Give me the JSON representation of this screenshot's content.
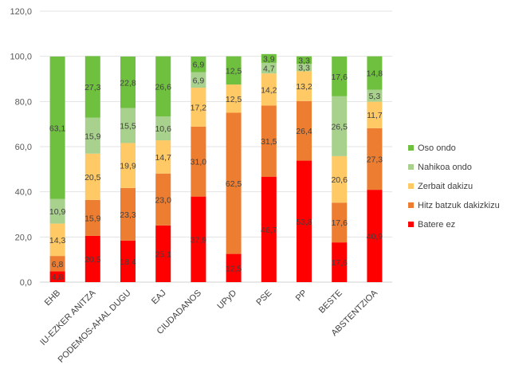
{
  "chart_data": {
    "type": "bar",
    "stacked": true,
    "title": "",
    "xlabel": "",
    "ylabel": "",
    "ylim": [
      0,
      120
    ],
    "yticks": [
      "0,0",
      "20,0",
      "40,0",
      "60,0",
      "80,0",
      "100,0",
      "120,0"
    ],
    "grid": true,
    "legend_position": "right",
    "categories": [
      "EHB",
      "IU-EZKER ANITZA",
      "PODEMOS-AHAL DUGU",
      "EAJ",
      "CIUDADANOS",
      "UPyD",
      "PSE",
      "PP",
      "BESTE",
      "ABSTENTZIOA"
    ],
    "series": [
      {
        "name": "Batere ez",
        "color": "#ff0000",
        "values": [
          4.8,
          20.5,
          18.4,
          25.1,
          37.9,
          12.5,
          46.7,
          53.8,
          17.6,
          40.9
        ],
        "labels": [
          "4,8",
          "20,5",
          "18,4",
          "25,1",
          "37,9",
          "12,5",
          "46,7",
          "53,8",
          "17,6",
          "40,9"
        ]
      },
      {
        "name": "Hitz batzuk dakizkizu",
        "color": "#ed7d31",
        "values": [
          6.8,
          15.9,
          23.3,
          23.0,
          31.0,
          62.5,
          31.5,
          26.4,
          17.6,
          27.3
        ],
        "labels": [
          "6,8",
          "15,9",
          "23,3",
          "23,0",
          "31,0",
          "62,5",
          "31,5",
          "26,4",
          "17,6",
          "27,3"
        ]
      },
      {
        "name": "Zerbait dakizu",
        "color": "#ffc966",
        "values": [
          14.3,
          20.5,
          19.9,
          14.7,
          17.2,
          12.5,
          14.2,
          13.2,
          20.6,
          11.7
        ],
        "labels": [
          "14,3",
          "20,5",
          "19,9",
          "14,7",
          "17,2",
          "12,5",
          "14,2",
          "13,2",
          "20,6",
          "11,7"
        ]
      },
      {
        "name": "Nahikoa ondo",
        "color": "#a9d18e",
        "values": [
          10.9,
          15.9,
          15.5,
          10.6,
          6.9,
          0,
          4.7,
          3.3,
          26.5,
          5.3
        ],
        "labels": [
          "10,9",
          "15,9",
          "15,5",
          "10,6",
          "6,9",
          "",
          "4,7",
          "3,3",
          "26,5",
          "5,3"
        ]
      },
      {
        "name": "Oso ondo",
        "color": "#70c040",
        "values": [
          63.1,
          27.3,
          22.8,
          26.6,
          6.9,
          12.5,
          3.9,
          3.3,
          17.6,
          14.8
        ],
        "labels": [
          "63,1",
          "27,3",
          "22,8",
          "26,6",
          "6,9",
          "12,5",
          "3,9",
          "3,3",
          "17,6",
          "14,8"
        ]
      }
    ]
  }
}
